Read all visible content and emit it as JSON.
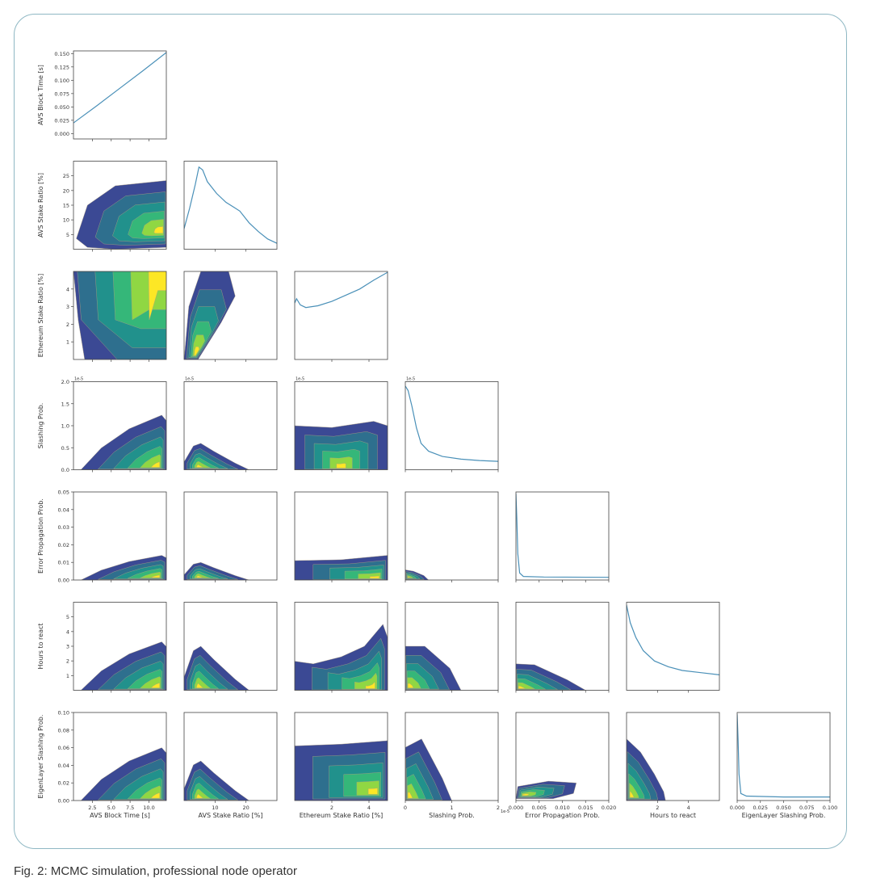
{
  "caption": "Fig. 2: MCMC simulation, professional node operator",
  "chart_data": {
    "type": "corner",
    "variables": [
      {
        "label": "AVS Block Time [s]",
        "range": [
          0,
          12.3
        ],
        "ticks": [
          2.5,
          5.0,
          7.5,
          10.0
        ],
        "tick_labels": [
          "2.5",
          "5.0",
          "7.5",
          "10.0"
        ]
      },
      {
        "label": "AVS Stake Ratio [%]",
        "range": [
          0,
          30
        ],
        "ticks": [
          10,
          20
        ],
        "tick_labels": [
          "10",
          "20"
        ]
      },
      {
        "label": "Ethereum Stake Ratio [%]",
        "range": [
          0,
          5
        ],
        "ticks": [
          2,
          4
        ],
        "tick_labels": [
          "2",
          "4"
        ]
      },
      {
        "label": "Slashing Prob.",
        "range": [
          0,
          2
        ],
        "ticks": [
          0,
          1,
          2
        ],
        "tick_labels": [
          "0",
          "1",
          "2"
        ],
        "offset": "1e-5"
      },
      {
        "label": "Error Propagation Prob.",
        "range": [
          0,
          0.02
        ],
        "ticks": [
          0,
          0.005,
          0.01,
          0.015,
          0.02
        ],
        "tick_labels": [
          "0.000",
          "0.005",
          "0.010",
          "0.015",
          "0.020"
        ]
      },
      {
        "label": "Hours to react",
        "range": [
          0,
          6
        ],
        "ticks": [
          2,
          4
        ],
        "tick_labels": [
          "2",
          "4"
        ]
      },
      {
        "label": "EigenLayer Slashing Prob.",
        "range": [
          0,
          0.1
        ],
        "ticks": [
          0,
          0.025,
          0.05,
          0.075,
          0.1
        ],
        "tick_labels": [
          "0.000",
          "0.025",
          "0.050",
          "0.075",
          "0.100"
        ]
      }
    ],
    "row_axes": [
      {
        "range": [
          -0.01,
          0.155
        ],
        "ticks": [
          0,
          0.025,
          0.05,
          0.075,
          0.1,
          0.125,
          0.15
        ],
        "tick_labels": [
          "0.000",
          "0.025",
          "0.050",
          "0.075",
          "0.100",
          "0.125",
          "0.150"
        ]
      },
      {
        "range": [
          0,
          30
        ],
        "ticks": [
          5,
          10,
          15,
          20,
          25
        ],
        "tick_labels": [
          "5",
          "10",
          "15",
          "20",
          "25"
        ]
      },
      {
        "range": [
          0,
          5
        ],
        "ticks": [
          1,
          2,
          3,
          4
        ],
        "tick_labels": [
          "1",
          "2",
          "3",
          "4"
        ]
      },
      {
        "range": [
          0,
          2
        ],
        "ticks": [
          0,
          0.5,
          1,
          1.5,
          2
        ],
        "tick_labels": [
          "0.0",
          "0.5",
          "1.0",
          "1.5",
          "2.0"
        ],
        "offset": "1e-5"
      },
      {
        "range": [
          0,
          0.05
        ],
        "ticks": [
          0,
          0.01,
          0.02,
          0.03,
          0.04,
          0.05
        ],
        "tick_labels": [
          "0.00",
          "0.01",
          "0.02",
          "0.03",
          "0.04",
          "0.05"
        ]
      },
      {
        "range": [
          0,
          6
        ],
        "ticks": [
          1,
          2,
          3,
          4,
          5
        ],
        "tick_labels": [
          "1",
          "2",
          "3",
          "4",
          "5"
        ]
      },
      {
        "range": [
          0,
          0.1
        ],
        "ticks": [
          0,
          0.02,
          0.04,
          0.06,
          0.08,
          0.1
        ],
        "tick_labels": [
          "0.00",
          "0.02",
          "0.04",
          "0.06",
          "0.08",
          "0.10"
        ]
      }
    ],
    "diagonal_curves": [
      [
        [
          0,
          0.02
        ],
        [
          0.25,
          0.052
        ],
        [
          0.5,
          0.085
        ],
        [
          0.75,
          0.118
        ],
        [
          1,
          0.152
        ]
      ],
      [
        [
          0,
          7
        ],
        [
          0.06,
          14
        ],
        [
          0.12,
          22
        ],
        [
          0.16,
          28
        ],
        [
          0.2,
          27
        ],
        [
          0.25,
          23
        ],
        [
          0.35,
          19
        ],
        [
          0.45,
          16
        ],
        [
          0.55,
          14
        ],
        [
          0.6,
          13
        ],
        [
          0.7,
          9
        ],
        [
          0.8,
          6
        ],
        [
          0.9,
          3.5
        ],
        [
          1,
          2
        ]
      ],
      [
        [
          0,
          3.2
        ],
        [
          0.02,
          3.45
        ],
        [
          0.06,
          3.1
        ],
        [
          0.12,
          2.95
        ],
        [
          0.25,
          3.05
        ],
        [
          0.4,
          3.3
        ],
        [
          0.55,
          3.65
        ],
        [
          0.7,
          4.0
        ],
        [
          0.85,
          4.5
        ],
        [
          1,
          4.95
        ]
      ],
      [
        [
          0,
          1.9
        ],
        [
          0.03,
          1.8
        ],
        [
          0.07,
          1.45
        ],
        [
          0.12,
          0.95
        ],
        [
          0.17,
          0.6
        ],
        [
          0.25,
          0.42
        ],
        [
          0.4,
          0.3
        ],
        [
          0.6,
          0.24
        ],
        [
          0.8,
          0.21
        ],
        [
          1,
          0.19
        ]
      ],
      [
        [
          0,
          0.049
        ],
        [
          0.01,
          0.035
        ],
        [
          0.02,
          0.015
        ],
        [
          0.04,
          0.004
        ],
        [
          0.08,
          0.002
        ],
        [
          0.3,
          0.0017
        ],
        [
          1,
          0.0015
        ]
      ],
      [
        [
          0,
          5.8
        ],
        [
          0.04,
          4.6
        ],
        [
          0.1,
          3.6
        ],
        [
          0.18,
          2.7
        ],
        [
          0.3,
          2.0
        ],
        [
          0.45,
          1.6
        ],
        [
          0.6,
          1.35
        ],
        [
          0.8,
          1.2
        ],
        [
          1,
          1.05
        ]
      ],
      [
        [
          0,
          0.098
        ],
        [
          0.01,
          0.07
        ],
        [
          0.02,
          0.03
        ],
        [
          0.04,
          0.008
        ],
        [
          0.1,
          0.005
        ],
        [
          0.5,
          0.004
        ],
        [
          1,
          0.004
        ]
      ]
    ],
    "contour_levels": 6,
    "colormap": [
      "#3b4994",
      "#2e6f8e",
      "#21918c",
      "#35b779",
      "#90d743",
      "#fde725"
    ],
    "line_color": "#4a90b8",
    "grid": false
  }
}
